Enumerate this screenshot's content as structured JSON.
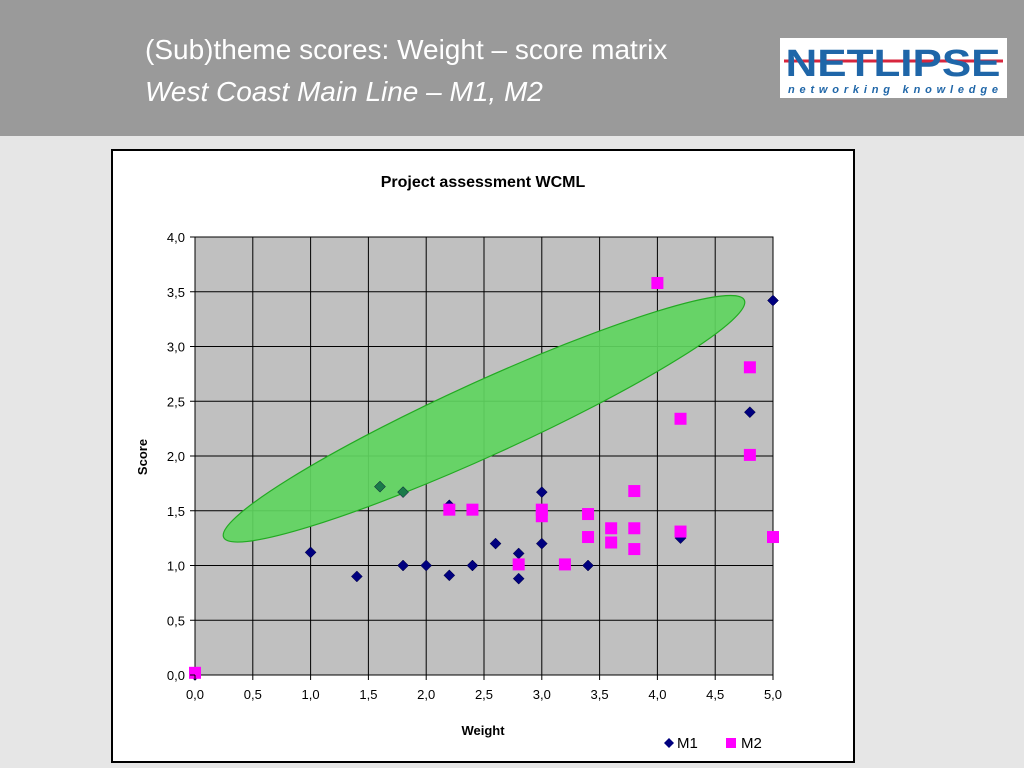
{
  "slide": {
    "title_line1": "(Sub)theme scores: Weight – score matrix",
    "title_line2": "West Coast Main Line – M1, M2"
  },
  "logo": {
    "text": "NETLIPSE",
    "tagline": "networking  knowledge",
    "colors": {
      "blue": "#1f66a8",
      "red": "#d7263d"
    }
  },
  "colors": {
    "header_bg": "#9a9a9a",
    "page_bg": "#e6e6e6",
    "plot_bg": "#c0c0c0",
    "m1": "#00007f",
    "m2": "#ff00ff",
    "highlight": "#5fd55f",
    "highlight_edge": "#22aa22",
    "green_points": "#1a7a4a",
    "gray_point": "#8a7a8a"
  },
  "chart_data": {
    "type": "scatter",
    "title": "Project assessment WCML",
    "xlabel": "Weight",
    "ylabel": "Score",
    "xlim": [
      0,
      5
    ],
    "ylim": [
      0,
      4
    ],
    "grid": true,
    "legend_position": "bottom-right",
    "x_ticks": [
      "0,0",
      "0,5",
      "1,0",
      "1,5",
      "2,0",
      "2,5",
      "3,0",
      "3,5",
      "4,0",
      "4,5",
      "5,0"
    ],
    "y_ticks": [
      "0,0",
      "0,5",
      "1,0",
      "1,5",
      "2,0",
      "2,5",
      "3,0",
      "3,5",
      "4,0"
    ],
    "series": [
      {
        "name": "M1",
        "marker": "diamond",
        "points": [
          [
            0.0,
            0.0
          ],
          [
            1.0,
            1.12
          ],
          [
            1.4,
            0.9
          ],
          [
            1.6,
            1.72
          ],
          [
            1.8,
            1.67
          ],
          [
            1.8,
            1.0
          ],
          [
            2.0,
            1.0
          ],
          [
            2.2,
            1.55
          ],
          [
            2.2,
            0.91
          ],
          [
            2.4,
            1.0
          ],
          [
            2.6,
            1.2
          ],
          [
            2.8,
            1.11
          ],
          [
            2.8,
            0.88
          ],
          [
            3.0,
            1.67
          ],
          [
            3.0,
            1.2
          ],
          [
            3.4,
            1.0
          ],
          [
            4.0,
            3.58
          ],
          [
            4.2,
            1.25
          ],
          [
            4.8,
            2.4
          ],
          [
            5.0,
            3.42
          ]
        ]
      },
      {
        "name": "M2",
        "marker": "square",
        "points": [
          [
            0.0,
            0.02
          ],
          [
            2.2,
            1.51
          ],
          [
            2.4,
            1.51
          ],
          [
            2.8,
            1.01
          ],
          [
            3.0,
            1.51
          ],
          [
            3.0,
            1.45
          ],
          [
            3.2,
            1.01
          ],
          [
            3.4,
            1.47
          ],
          [
            3.4,
            1.26
          ],
          [
            3.6,
            1.34
          ],
          [
            3.6,
            1.21
          ],
          [
            3.8,
            1.68
          ],
          [
            3.8,
            1.34
          ],
          [
            3.8,
            1.15
          ],
          [
            4.0,
            3.58
          ],
          [
            4.2,
            2.34
          ],
          [
            4.2,
            1.31
          ],
          [
            4.8,
            2.81
          ],
          [
            4.8,
            2.01
          ],
          [
            5.0,
            1.26
          ]
        ]
      }
    ],
    "annotation": {
      "shape": "ellipse",
      "center": [
        2.5,
        2.34
      ],
      "x_radius": 2.75,
      "y_radius": 0.48,
      "angle_deg": -24.5,
      "color": "#5fd55f"
    }
  }
}
